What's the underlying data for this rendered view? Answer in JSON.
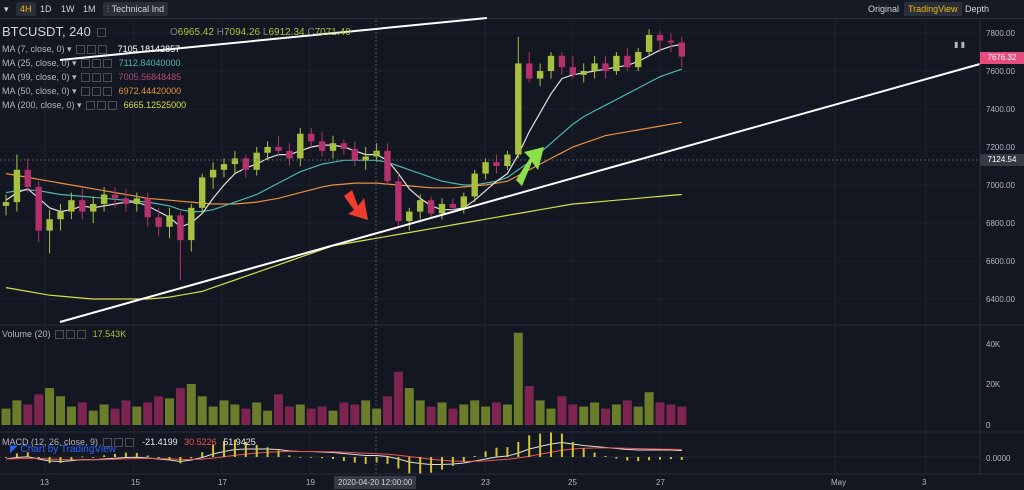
{
  "toolbar": {
    "timeframes": [
      "4H",
      "1D",
      "1W",
      "1M"
    ],
    "active_timeframe": "4H",
    "indicators_label": "Technical Ind",
    "views": [
      "Original",
      "TradingView",
      "Depth"
    ],
    "active_view": "TradingView"
  },
  "symbol": {
    "name": "BTCUSDT, 240",
    "open_label": "O",
    "open": "6965.42",
    "high_label": "H",
    "high": "7094.26",
    "low_label": "L",
    "low": "6912.34",
    "close_label": "C",
    "close": "7071.40"
  },
  "indicators": [
    {
      "label": "MA (7, close, 0)",
      "value": "7105.18142857",
      "color": "#ffffff"
    },
    {
      "label": "MA (25, close, 0)",
      "value": "7112.84040000",
      "color": "#4db6ac"
    },
    {
      "label": "MA (99, close, 0)",
      "value": "7005.56848485",
      "color": "#b04a7a"
    },
    {
      "label": "MA (50, close, 0)",
      "value": "6972.44420000",
      "color": "#e8913a"
    },
    {
      "label": "MA (200, close, 0)",
      "value": "6665.12525000",
      "color": "#d4dd4a"
    }
  ],
  "price_axis": {
    "ticks": [
      "7800.00",
      "7600.00",
      "7400.00",
      "7200.00",
      "7000.00",
      "6800.00",
      "6600.00",
      "6400.00"
    ],
    "current_price": "7676.32",
    "crosshair_price": "7124.54"
  },
  "volume": {
    "label": "Volume (20)",
    "value": "17.543K",
    "ticks": [
      "40K",
      "20K",
      "0"
    ]
  },
  "macd": {
    "label": "MACD (12, 26, close, 9)",
    "v1": "-21.4199",
    "v2": "30.5226",
    "v3": "51.9425",
    "tick": "0.0000"
  },
  "time_axis": {
    "ticks": [
      "13",
      "15",
      "17",
      "19",
      "23",
      "25",
      "27",
      "May",
      "3"
    ],
    "crosshair_time": "2020-04-20 12:00:00"
  },
  "watermark": "Chart by TradingView",
  "colors": {
    "up": "#a7c13e",
    "down": "#b5316c",
    "accent": "#f0b90b",
    "current_price_bg": "#e84c7d"
  },
  "chart_data": {
    "type": "candlestick",
    "symbol": "BTCUSDT",
    "interval": "240",
    "ylim": [
      6300,
      7850
    ],
    "candles": [
      [
        6890,
        6950,
        6840,
        6910
      ],
      [
        6910,
        7160,
        6860,
        7080
      ],
      [
        7080,
        7140,
        6960,
        6990
      ],
      [
        6990,
        7020,
        6700,
        6760
      ],
      [
        6760,
        6870,
        6640,
        6820
      ],
      [
        6820,
        6900,
        6760,
        6860
      ],
      [
        6860,
        6960,
        6820,
        6920
      ],
      [
        6920,
        6980,
        6820,
        6860
      ],
      [
        6860,
        6940,
        6800,
        6900
      ],
      [
        6900,
        6990,
        6860,
        6950
      ],
      [
        6950,
        6990,
        6880,
        6930
      ],
      [
        6930,
        6980,
        6860,
        6900
      ],
      [
        6900,
        6960,
        6860,
        6930
      ],
      [
        6930,
        6960,
        6780,
        6830
      ],
      [
        6830,
        6880,
        6730,
        6780
      ],
      [
        6780,
        6880,
        6720,
        6840
      ],
      [
        6840,
        6860,
        6500,
        6710
      ],
      [
        6710,
        6900,
        6650,
        6880
      ],
      [
        6880,
        7060,
        6850,
        7040
      ],
      [
        7040,
        7120,
        6980,
        7080
      ],
      [
        7080,
        7140,
        7040,
        7110
      ],
      [
        7110,
        7180,
        7060,
        7140
      ],
      [
        7140,
        7160,
        7040,
        7080
      ],
      [
        7080,
        7200,
        7050,
        7170
      ],
      [
        7170,
        7230,
        7130,
        7200
      ],
      [
        7200,
        7260,
        7150,
        7180
      ],
      [
        7180,
        7220,
        7100,
        7140
      ],
      [
        7140,
        7300,
        7100,
        7270
      ],
      [
        7270,
        7300,
        7200,
        7230
      ],
      [
        7230,
        7280,
        7150,
        7180
      ],
      [
        7180,
        7260,
        7140,
        7220
      ],
      [
        7220,
        7240,
        7160,
        7190
      ],
      [
        7190,
        7230,
        7100,
        7130
      ],
      [
        7130,
        7200,
        7080,
        7150
      ],
      [
        7150,
        7220,
        7120,
        7180
      ],
      [
        7180,
        7220,
        7000,
        7020
      ],
      [
        7020,
        7060,
        6780,
        6810
      ],
      [
        6810,
        6880,
        6760,
        6860
      ],
      [
        6860,
        6950,
        6820,
        6920
      ],
      [
        6920,
        6940,
        6830,
        6850
      ],
      [
        6850,
        6930,
        6820,
        6900
      ],
      [
        6900,
        6930,
        6860,
        6880
      ],
      [
        6880,
        6960,
        6850,
        6940
      ],
      [
        6940,
        7080,
        6910,
        7060
      ],
      [
        7060,
        7140,
        7030,
        7120
      ],
      [
        7120,
        7160,
        7060,
        7100
      ],
      [
        7100,
        7180,
        7080,
        7160
      ],
      [
        7160,
        7780,
        7140,
        7640
      ],
      [
        7640,
        7700,
        7540,
        7560
      ],
      [
        7560,
        7640,
        7520,
        7600
      ],
      [
        7600,
        7700,
        7560,
        7680
      ],
      [
        7680,
        7700,
        7580,
        7620
      ],
      [
        7620,
        7680,
        7560,
        7580
      ],
      [
        7580,
        7640,
        7540,
        7600
      ],
      [
        7600,
        7680,
        7560,
        7640
      ],
      [
        7640,
        7680,
        7560,
        7600
      ],
      [
        7600,
        7700,
        7580,
        7680
      ],
      [
        7680,
        7720,
        7600,
        7620
      ],
      [
        7620,
        7720,
        7600,
        7700
      ],
      [
        7700,
        7820,
        7680,
        7790
      ],
      [
        7790,
        7810,
        7700,
        7760
      ],
      [
        7760,
        7800,
        7700,
        7750
      ],
      [
        7750,
        7780,
        7620,
        7676
      ]
    ],
    "volumes": [
      8,
      12,
      10,
      15,
      18,
      14,
      9,
      11,
      7,
      10,
      8,
      12,
      9,
      11,
      14,
      13,
      18,
      20,
      14,
      9,
      12,
      10,
      8,
      11,
      7,
      15,
      9,
      10,
      8,
      9,
      7,
      11,
      10,
      12,
      8,
      14,
      26,
      18,
      12,
      9,
      11,
      8,
      10,
      12,
      9,
      11,
      10,
      45,
      19,
      12,
      8,
      14,
      10,
      9,
      11,
      8,
      10,
      12,
      9,
      16,
      11,
      10,
      9
    ],
    "ma7": [
      6920,
      6960,
      6980,
      6930,
      6880,
      6860,
      6870,
      6890,
      6880,
      6890,
      6900,
      6910,
      6910,
      6890,
      6860,
      6830,
      6780,
      6800,
      6850,
      6930,
      7000,
      7060,
      7090,
      7110,
      7140,
      7160,
      7160,
      7180,
      7200,
      7210,
      7210,
      7200,
      7180,
      7160,
      7160,
      7130,
      7060,
      6980,
      6930,
      6890,
      6870,
      6870,
      6880,
      6920,
      6970,
      7020,
      7060,
      7160,
      7280,
      7380,
      7480,
      7560,
      7580,
      7590,
      7600,
      7610,
      7620,
      7630,
      7650,
      7680,
      7710,
      7730,
      7740
    ],
    "ma25": [
      6960,
      6970,
      6975,
      6970,
      6960,
      6950,
      6945,
      6940,
      6935,
      6930,
      6925,
      6920,
      6915,
      6910,
      6900,
      6890,
      6870,
      6860,
      6860,
      6870,
      6890,
      6910,
      6930,
      6950,
      6980,
      7010,
      7040,
      7070,
      7090,
      7110,
      7120,
      7130,
      7130,
      7130,
      7130,
      7120,
      7100,
      7080,
      7060,
      7040,
      7020,
      7010,
      7000,
      7000,
      7010,
      7020,
      7040,
      7080,
      7120,
      7170,
      7220,
      7270,
      7320,
      7360,
      7390,
      7420,
      7450,
      7480,
      7510,
      7540,
      7570,
      7590,
      7610
    ],
    "ma50": [
      7060,
      7050,
      7040,
      7030,
      7020,
      7010,
      7000,
      6990,
      6980,
      6970,
      6960,
      6950,
      6940,
      6930,
      6925,
      6920,
      6915,
      6910,
      6905,
      6900,
      6900,
      6900,
      6905,
      6910,
      6920,
      6930,
      6945,
      6960,
      6975,
      6990,
      7000,
      7005,
      7010,
      7010,
      7010,
      7005,
      7000,
      6995,
      6990,
      6985,
      6985,
      6985,
      6990,
      6995,
      7000,
      7010,
      7020,
      7050,
      7080,
      7110,
      7140,
      7170,
      7200,
      7220,
      7240,
      7260,
      7270,
      7280,
      7290,
      7300,
      7310,
      7320,
      7330
    ],
    "ma200": [
      6460,
      6450,
      6440,
      6430,
      6420,
      6415,
      6410,
      6405,
      6400,
      6400,
      6400,
      6400,
      6400,
      6400,
      6405,
      6410,
      6420,
      6430,
      6440,
      6460,
      6480,
      6500,
      6520,
      6540,
      6560,
      6580,
      6600,
      6620,
      6640,
      6660,
      6680,
      6690,
      6700,
      6710,
      6720,
      6730,
      6740,
      6750,
      6760,
      6770,
      6780,
      6790,
      6800,
      6810,
      6820,
      6830,
      6840,
      6850,
      6860,
      6870,
      6880,
      6890,
      6900,
      6905,
      6910,
      6915,
      6920,
      6925,
      6930,
      6935,
      6940,
      6945,
      6950
    ]
  }
}
